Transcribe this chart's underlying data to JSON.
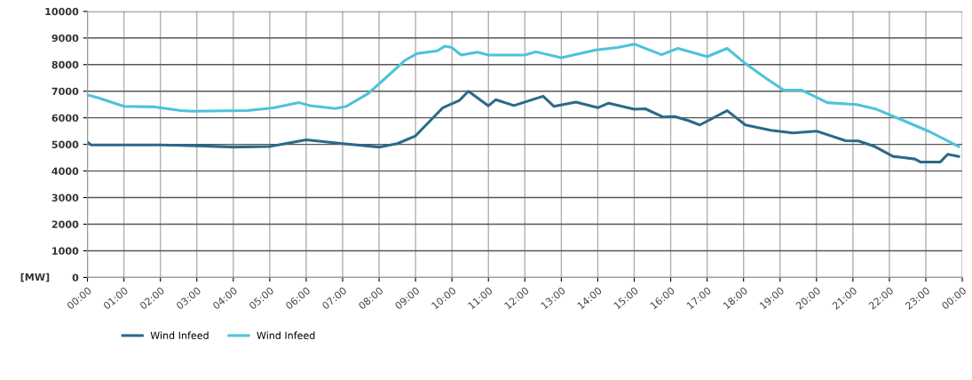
{
  "chart_data": {
    "type": "line",
    "ylabel": "[MW]",
    "xlim": [
      0,
      24
    ],
    "ylim": [
      0,
      10000
    ],
    "xticks": [
      {
        "value": 0,
        "label": "00:00"
      },
      {
        "value": 1,
        "label": "01:00"
      },
      {
        "value": 2,
        "label": "02:00"
      },
      {
        "value": 3,
        "label": "03:00"
      },
      {
        "value": 4,
        "label": "04:00"
      },
      {
        "value": 5,
        "label": "05:00"
      },
      {
        "value": 6,
        "label": "06:00"
      },
      {
        "value": 7,
        "label": "07:00"
      },
      {
        "value": 8,
        "label": "08:00"
      },
      {
        "value": 9,
        "label": "09:00"
      },
      {
        "value": 10,
        "label": "10:00"
      },
      {
        "value": 11,
        "label": "11:00"
      },
      {
        "value": 12,
        "label": "12:00"
      },
      {
        "value": 13,
        "label": "13:00"
      },
      {
        "value": 14,
        "label": "14:00"
      },
      {
        "value": 15,
        "label": "15:00"
      },
      {
        "value": 16,
        "label": "16:00"
      },
      {
        "value": 17,
        "label": "17:00"
      },
      {
        "value": 18,
        "label": "18:00"
      },
      {
        "value": 19,
        "label": "19:00"
      },
      {
        "value": 20,
        "label": "20:00"
      },
      {
        "value": 21,
        "label": "21:00"
      },
      {
        "value": 22,
        "label": "22:00"
      },
      {
        "value": 23,
        "label": "23:00"
      },
      {
        "value": 24,
        "label": "00:00"
      }
    ],
    "yticks": [
      0,
      1000,
      2000,
      3000,
      4000,
      5000,
      6000,
      7000,
      8000,
      9000,
      10000
    ],
    "grid": true,
    "legend": "bottom left",
    "marker": "none",
    "line_style": "solid",
    "series": [
      {
        "name": "Wind Infeed",
        "color": "#2b6a8a",
        "x": [
          0,
          0.1,
          1,
          2,
          3,
          4,
          5,
          6,
          7,
          8,
          8.5,
          9,
          9.75,
          10.2,
          10.45,
          11,
          11.2,
          11.7,
          12.5,
          12.8,
          13.4,
          14,
          14.3,
          15,
          15.3,
          15.8,
          16.1,
          16.5,
          16.8,
          17.55,
          18.05,
          18.75,
          19.35,
          20,
          20.8,
          21.15,
          21.6,
          22.1,
          22.7,
          22.85,
          23.4,
          23.6,
          23.9
        ],
        "values": [
          5080,
          4980,
          4980,
          4980,
          4950,
          4900,
          4920,
          5170,
          5030,
          4900,
          5030,
          5320,
          6380,
          6650,
          7000,
          6450,
          6680,
          6460,
          6810,
          6430,
          6590,
          6380,
          6550,
          6320,
          6340,
          6030,
          6050,
          5890,
          5730,
          6270,
          5730,
          5530,
          5430,
          5500,
          5140,
          5130,
          4920,
          4550,
          4450,
          4340,
          4340,
          4630,
          4550
        ]
      },
      {
        "name": "Wind Infeed",
        "color": "#4cc3d9",
        "x": [
          0,
          0.3,
          1,
          1.85,
          2.55,
          2.9,
          4.4,
          5.1,
          5.8,
          6.1,
          6.8,
          7.1,
          7.7,
          8.1,
          8.7,
          9.05,
          9.6,
          9.8,
          10,
          10.25,
          10.7,
          11,
          12,
          12.3,
          13,
          13.95,
          14.55,
          15,
          15.75,
          16.2,
          17,
          17.55,
          18.05,
          18.6,
          19.1,
          19.6,
          20.3,
          21.1,
          21.65,
          22.4,
          23.1,
          23.9
        ],
        "values": [
          6860,
          6750,
          6430,
          6410,
          6270,
          6250,
          6270,
          6370,
          6570,
          6460,
          6350,
          6430,
          6910,
          7400,
          8150,
          8420,
          8520,
          8690,
          8640,
          8360,
          8470,
          8360,
          8360,
          8480,
          8260,
          8550,
          8640,
          8770,
          8370,
          8610,
          8300,
          8610,
          8040,
          7500,
          7040,
          7040,
          6570,
          6500,
          6320,
          5890,
          5480,
          4920
        ]
      }
    ]
  }
}
